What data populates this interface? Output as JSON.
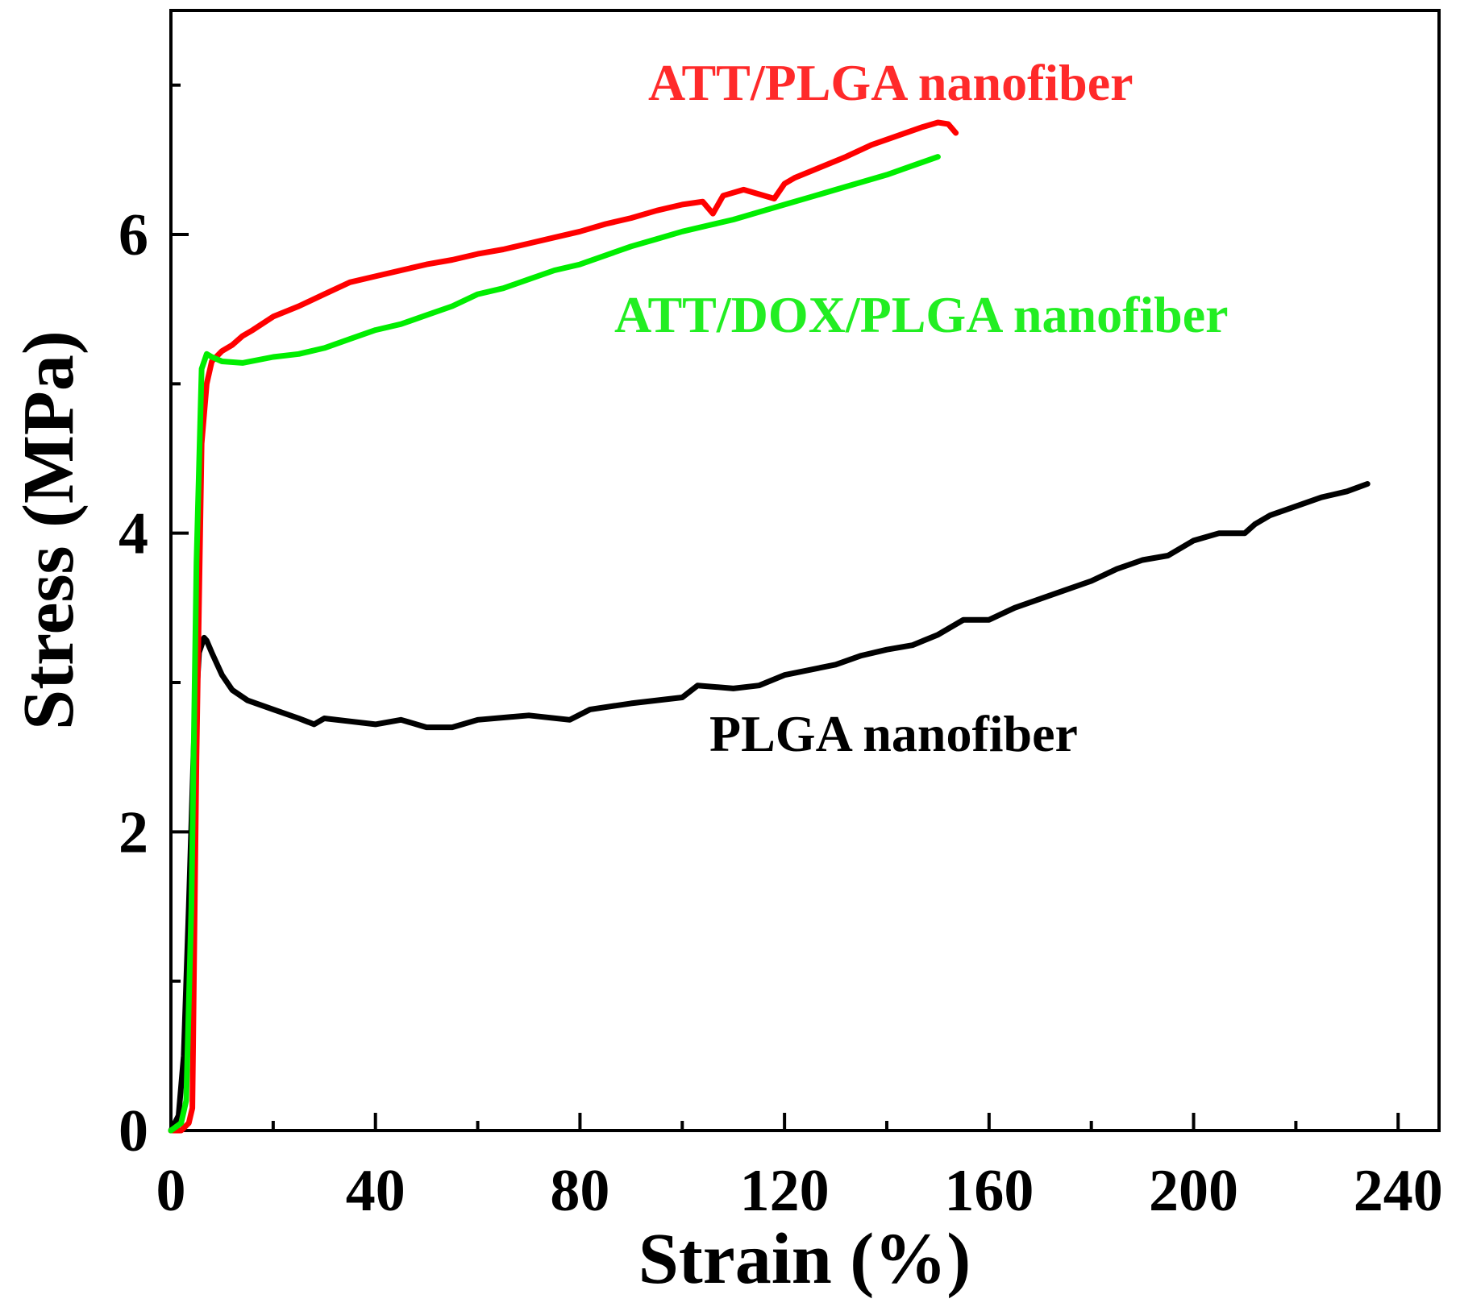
{
  "chart_data": {
    "type": "line",
    "title": "",
    "xlabel": "Strain (%)",
    "ylabel": "Stress (MPa)",
    "xlim": [
      0,
      248
    ],
    "ylim": [
      0,
      7.5
    ],
    "xticks_major": [
      0,
      40,
      80,
      120,
      160,
      200,
      240
    ],
    "xticks_minor": [
      20,
      60,
      100,
      140,
      180,
      220
    ],
    "xtick_labels": [
      "0",
      "40",
      "80",
      "120",
      "160",
      "200",
      "240"
    ],
    "yticks_major": [
      0,
      2,
      4,
      6
    ],
    "yticks_minor": [
      1,
      3,
      5,
      7
    ],
    "ytick_labels": [
      "0",
      "2",
      "4",
      "6"
    ],
    "grid": false,
    "legend": "inline labels",
    "series": [
      {
        "name": "PLGA nanofiber",
        "color": "#000000",
        "x": [
          0,
          1.5,
          2.5,
          3.5,
          4.5,
          5.5,
          6.5,
          7,
          8,
          10,
          12,
          15,
          20,
          25,
          28,
          30,
          35,
          40,
          45,
          50,
          55,
          60,
          70,
          78,
          82,
          90,
          100,
          103,
          110,
          115,
          120,
          130,
          135,
          140,
          145,
          150,
          155,
          160,
          165,
          170,
          175,
          180,
          185,
          190,
          195,
          200,
          205,
          210,
          212,
          215,
          220,
          225,
          230,
          234
        ],
        "y": [
          0,
          0.1,
          0.5,
          1.5,
          2.6,
          3.2,
          3.3,
          3.28,
          3.2,
          3.05,
          2.95,
          2.88,
          2.82,
          2.76,
          2.72,
          2.76,
          2.74,
          2.72,
          2.75,
          2.7,
          2.7,
          2.75,
          2.78,
          2.75,
          2.82,
          2.86,
          2.9,
          2.98,
          2.96,
          2.98,
          3.05,
          3.12,
          3.18,
          3.22,
          3.25,
          3.32,
          3.42,
          3.42,
          3.5,
          3.56,
          3.62,
          3.68,
          3.76,
          3.82,
          3.85,
          3.95,
          4.0,
          4.0,
          4.06,
          4.12,
          4.18,
          4.24,
          4.28,
          4.33
        ]
      },
      {
        "name": "ATT/PLGA nanofiber",
        "color": "#ff0000",
        "x": [
          0,
          2,
          3.5,
          4.2,
          5,
          6,
          7,
          8,
          10,
          12,
          14,
          16,
          20,
          25,
          30,
          35,
          40,
          45,
          50,
          55,
          60,
          65,
          70,
          75,
          80,
          85,
          90,
          95,
          100,
          104,
          106,
          108,
          112,
          118,
          120,
          122,
          127,
          132,
          137,
          142,
          147,
          150,
          152,
          153.5
        ],
        "y": [
          0,
          0,
          0.05,
          0.15,
          2.5,
          4.6,
          5.0,
          5.15,
          5.22,
          5.26,
          5.32,
          5.36,
          5.45,
          5.52,
          5.6,
          5.68,
          5.72,
          5.76,
          5.8,
          5.83,
          5.87,
          5.9,
          5.94,
          5.98,
          6.02,
          6.07,
          6.11,
          6.16,
          6.2,
          6.22,
          6.14,
          6.26,
          6.3,
          6.24,
          6.34,
          6.38,
          6.45,
          6.52,
          6.6,
          6.66,
          6.72,
          6.75,
          6.74,
          6.68
        ]
      },
      {
        "name": "ATT/DOX/PLGA nanofiber",
        "color": "#00ee00",
        "x": [
          0,
          2,
          3,
          4,
          5,
          6,
          7,
          8,
          10,
          14,
          20,
          25,
          30,
          35,
          40,
          45,
          50,
          55,
          60,
          65,
          70,
          75,
          80,
          85,
          90,
          95,
          100,
          105,
          110,
          115,
          120,
          125,
          130,
          135,
          140,
          145,
          150
        ],
        "y": [
          0,
          0.05,
          0.2,
          1.5,
          3.8,
          5.1,
          5.2,
          5.18,
          5.15,
          5.14,
          5.18,
          5.2,
          5.24,
          5.3,
          5.36,
          5.4,
          5.46,
          5.52,
          5.6,
          5.64,
          5.7,
          5.76,
          5.8,
          5.86,
          5.92,
          5.97,
          6.02,
          6.06,
          6.1,
          6.15,
          6.2,
          6.25,
          6.3,
          6.35,
          6.4,
          6.46,
          6.52
        ]
      }
    ]
  },
  "labels": {
    "att_plga": "ATT/PLGA nanofiber",
    "att_dox_plga": "ATT/DOX/PLGA nanofiber",
    "plga": "PLGA nanofiber"
  }
}
